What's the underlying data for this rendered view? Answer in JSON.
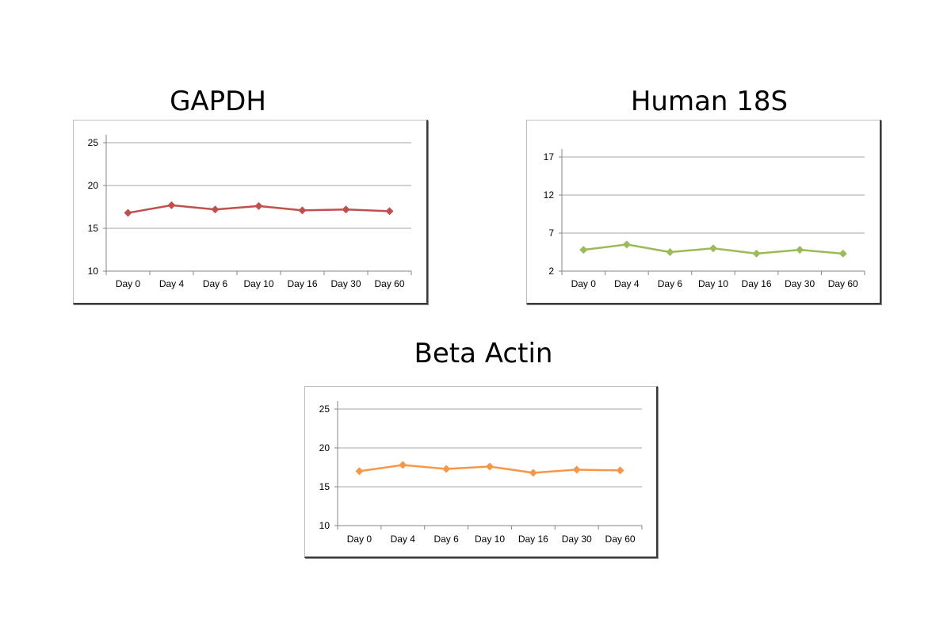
{
  "chart_data": [
    {
      "type": "line",
      "title": "GAPDH",
      "categories": [
        "Day 0",
        "Day 4",
        "Day 6",
        "Day 10",
        "Day 16",
        "Day 30",
        "Day 60"
      ],
      "series": [
        {
          "values": [
            16.8,
            17.7,
            17.2,
            17.6,
            17.1,
            17.2,
            17.0
          ],
          "color": "#c0504d"
        }
      ],
      "yticks": [
        "10",
        "15",
        "20",
        "25"
      ],
      "ylim": [
        10,
        25
      ],
      "grid": true
    },
    {
      "type": "line",
      "title": "Human 18S",
      "categories": [
        "Day 0",
        "Day 4",
        "Day 6",
        "Day 10",
        "Day 16",
        "Day 30",
        "Day 60"
      ],
      "series": [
        {
          "values": [
            4.8,
            5.5,
            4.5,
            5.0,
            4.3,
            4.8,
            4.3
          ],
          "color": "#9bbb59"
        }
      ],
      "yticks": [
        "2",
        "7",
        "12",
        "17"
      ],
      "ylim": [
        2,
        17
      ],
      "grid": true
    },
    {
      "type": "line",
      "title": "Beta Actin",
      "categories": [
        "Day 0",
        "Day 4",
        "Day 6",
        "Day 10",
        "Day 16",
        "Day 30",
        "Day 60"
      ],
      "series": [
        {
          "values": [
            17.0,
            17.8,
            17.3,
            17.6,
            16.8,
            17.2,
            17.1
          ],
          "color": "#f79646"
        }
      ],
      "yticks": [
        "10",
        "15",
        "20",
        "25"
      ],
      "ylim": [
        10,
        25
      ],
      "grid": true
    }
  ]
}
